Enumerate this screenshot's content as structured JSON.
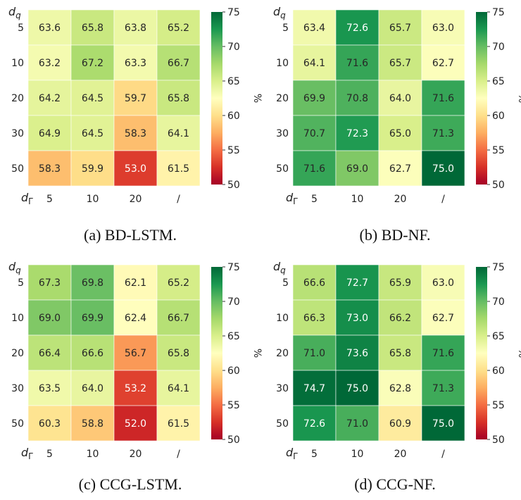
{
  "colors": {
    "scale": [
      "#a50026",
      "#d73027",
      "#f46d43",
      "#fdae61",
      "#fee08b",
      "#ffffbf",
      "#d9ef8b",
      "#a6d96a",
      "#66bd63",
      "#1a9850",
      "#006837"
    ],
    "text_light": "#ffffff",
    "text_dark": "#262626"
  },
  "chart_data": [
    {
      "type": "heatmap",
      "caption": "(a) BD-LSTM.",
      "x_label": "d",
      "x_label_sub": "Γ",
      "y_label": "d",
      "y_label_sub": "q",
      "x_ticks": [
        "5",
        "10",
        "20",
        "/"
      ],
      "y_ticks": [
        "5",
        "10",
        "20",
        "30",
        "50"
      ],
      "values": [
        [
          63.6,
          65.8,
          63.8,
          65.2
        ],
        [
          63.2,
          67.2,
          63.3,
          66.7
        ],
        [
          64.2,
          64.5,
          59.7,
          65.8
        ],
        [
          64.9,
          64.5,
          58.3,
          64.1
        ],
        [
          58.3,
          59.9,
          53.0,
          61.5
        ]
      ],
      "colorbar": {
        "range": [
          50,
          75
        ],
        "ticks": [
          "50",
          "55",
          "60",
          "65",
          "70",
          "75"
        ],
        "label": "%"
      }
    },
    {
      "type": "heatmap",
      "caption": "(b) BD-NF.",
      "x_label": "d",
      "x_label_sub": "Γ",
      "y_label": "d",
      "y_label_sub": "q",
      "x_ticks": [
        "5",
        "10",
        "20",
        "/"
      ],
      "y_ticks": [
        "5",
        "10",
        "20",
        "30",
        "50"
      ],
      "values": [
        [
          63.4,
          72.6,
          65.7,
          63.0
        ],
        [
          64.1,
          71.6,
          65.7,
          62.7
        ],
        [
          69.9,
          70.8,
          64.0,
          71.6
        ],
        [
          70.7,
          72.3,
          65.0,
          71.3
        ],
        [
          71.6,
          69.0,
          62.7,
          75.0
        ]
      ],
      "colorbar": {
        "range": [
          50,
          75
        ],
        "ticks": [
          "50",
          "55",
          "60",
          "65",
          "70",
          "75"
        ],
        "label": "%"
      }
    },
    {
      "type": "heatmap",
      "caption": "(c) CCG-LSTM.",
      "x_label": "d",
      "x_label_sub": "Γ",
      "y_label": "d",
      "y_label_sub": "q",
      "x_ticks": [
        "5",
        "10",
        "20",
        "/"
      ],
      "y_ticks": [
        "5",
        "10",
        "20",
        "30",
        "50"
      ],
      "values": [
        [
          67.3,
          69.8,
          62.1,
          65.2
        ],
        [
          69.0,
          69.9,
          62.4,
          66.7
        ],
        [
          66.4,
          66.6,
          56.7,
          65.8
        ],
        [
          63.5,
          64.0,
          53.2,
          64.1
        ],
        [
          60.3,
          58.8,
          52.0,
          61.5
        ]
      ],
      "colorbar": {
        "range": [
          50,
          75
        ],
        "ticks": [
          "50",
          "55",
          "60",
          "65",
          "70",
          "75"
        ],
        "label": "%"
      }
    },
    {
      "type": "heatmap",
      "caption": "(d) CCG-NF.",
      "x_label": "d",
      "x_label_sub": "Γ",
      "y_label": "d",
      "y_label_sub": "q",
      "x_ticks": [
        "5",
        "10",
        "20",
        "/"
      ],
      "y_ticks": [
        "5",
        "10",
        "20",
        "30",
        "50"
      ],
      "values": [
        [
          66.6,
          72.7,
          65.9,
          63.0
        ],
        [
          66.3,
          73.0,
          66.2,
          62.7
        ],
        [
          71.0,
          73.6,
          65.8,
          71.6
        ],
        [
          74.7,
          75.0,
          62.8,
          71.3
        ],
        [
          72.6,
          71.0,
          60.9,
          75.0
        ]
      ],
      "colorbar": {
        "range": [
          50,
          75
        ],
        "ticks": [
          "50",
          "55",
          "60",
          "65",
          "70",
          "75"
        ],
        "label": "%"
      }
    }
  ]
}
